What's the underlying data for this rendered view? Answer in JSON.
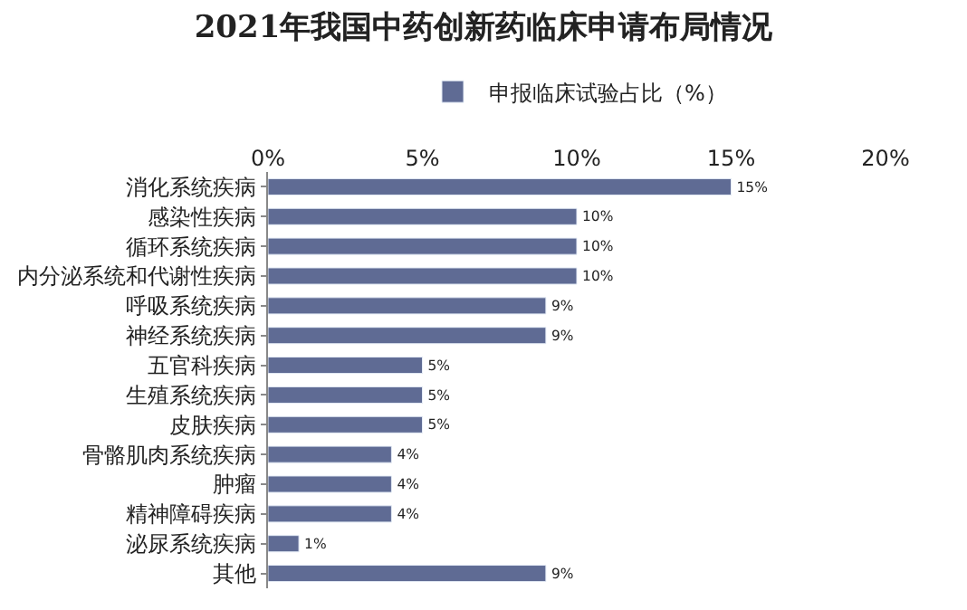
{
  "chart_data": {
    "type": "bar",
    "orientation": "horizontal",
    "title": "2021年我国中药创新药临床申请布局情况",
    "categories": [
      "消化系统疾病",
      "感染性疾病",
      "循环系统疾病",
      "内分泌系统和代谢性疾病",
      "呼吸系统疾病",
      "神经系统疾病",
      "五官科疾病",
      "生殖系统疾病",
      "皮肤疾病",
      "骨骼肌肉系统疾病",
      "肿瘤",
      "精神障碍疾病",
      "泌尿系统疾病",
      "其他"
    ],
    "series": [
      {
        "name": "申报临床试验占比（%）",
        "color": "#5f6b94",
        "values": [
          15,
          10,
          10,
          10,
          9,
          9,
          5,
          5,
          5,
          4,
          4,
          4,
          1,
          9
        ],
        "value_labels": [
          "15%",
          "10%",
          "10%",
          "10%",
          "9%",
          "9%",
          "5%",
          "5%",
          "5%",
          "4%",
          "4%",
          "4%",
          "1%",
          "9%"
        ]
      }
    ],
    "xlim": [
      0,
      20
    ],
    "xticks": [
      {
        "value": 0,
        "label": "0%"
      },
      {
        "value": 5,
        "label": "5%"
      },
      {
        "value": 10,
        "label": "10%"
      },
      {
        "value": 15,
        "label": "15%"
      },
      {
        "value": 20,
        "label": "20%"
      }
    ],
    "legend": "top"
  }
}
